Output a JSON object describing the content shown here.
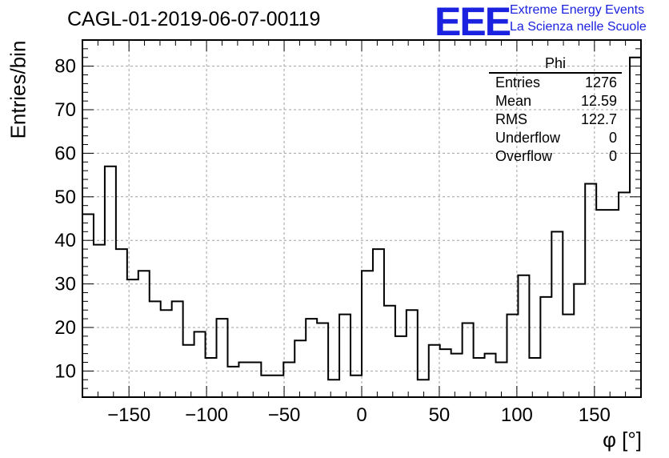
{
  "title": "CAGL-01-2019-06-07-00119",
  "logo": {
    "text": "EEE",
    "line1": "Extreme Energy Events",
    "line2": "La Scienza nelle Scuole",
    "color": "#1a22e0"
  },
  "stats": {
    "name": "Phi",
    "rows": [
      {
        "label": "Entries",
        "value": "1276"
      },
      {
        "label": "Mean",
        "value": "12.59"
      },
      {
        "label": "RMS",
        "value": "122.7"
      },
      {
        "label": "Underflow",
        "value": "0"
      },
      {
        "label": "Overflow",
        "value": "0"
      }
    ]
  },
  "chart_data": {
    "type": "histogram",
    "xlabel": "φ [°]",
    "ylabel": "Entries/bin",
    "xlim": [
      -180,
      180
    ],
    "ylim": [
      4,
      86
    ],
    "bin_width": 7.2,
    "bin_edges_start": -180,
    "values": [
      46,
      39,
      57,
      38,
      31,
      33,
      26,
      24,
      26,
      16,
      19,
      13,
      22,
      11,
      12,
      12,
      9,
      9,
      12,
      17,
      22,
      21,
      8,
      23,
      9,
      33,
      38,
      25,
      18,
      24,
      8,
      16,
      15,
      14,
      21,
      13,
      14,
      12,
      23,
      32,
      13,
      27,
      42,
      23,
      30,
      53,
      47,
      47,
      51,
      82
    ],
    "xticks": [
      -150,
      -100,
      -50,
      0,
      50,
      100,
      150
    ],
    "yticks": [
      10,
      20,
      30,
      40,
      50,
      60,
      70,
      80
    ],
    "grid": true
  }
}
